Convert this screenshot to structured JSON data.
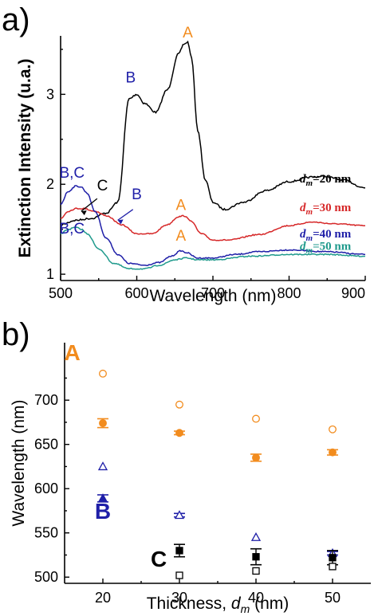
{
  "colors": {
    "black": "#000000",
    "red": "#d62728",
    "blue": "#1f1fa8",
    "teal": "#1f9a8c",
    "orange": "#f28c1e"
  },
  "panel_a": {
    "label": "a)"
  },
  "panel_b": {
    "label": "b)"
  },
  "chart_data": [
    {
      "type": "line",
      "xlabel": "Wavelength (nm)",
      "ylabel": "Extinction Intensity (u.a.)",
      "xlim": [
        500,
        900
      ],
      "ylim": [
        0.93,
        3.65
      ],
      "xticks": [
        500,
        600,
        700,
        800,
        900
      ],
      "yticks": [
        1,
        2,
        3
      ],
      "series": [
        {
          "name": "d_m=20 nm",
          "color": "#000000",
          "x": [
            500,
            520,
            540,
            560,
            575,
            590,
            600,
            610,
            625,
            640,
            655,
            662,
            667,
            672,
            680,
            690,
            700,
            715,
            740,
            770,
            800,
            830,
            845,
            870,
            900
          ],
          "y": [
            1.55,
            1.6,
            1.62,
            1.68,
            1.8,
            2.95,
            3.0,
            2.9,
            2.8,
            3.05,
            3.45,
            3.56,
            3.58,
            3.4,
            2.6,
            2.05,
            1.8,
            1.72,
            1.8,
            1.93,
            2.03,
            2.08,
            2.09,
            2.05,
            1.96
          ]
        },
        {
          "name": "d_m=30 nm",
          "color": "#d62728",
          "x": [
            500,
            510,
            520,
            530,
            545,
            560,
            580,
            600,
            620,
            640,
            655,
            662,
            670,
            685,
            700,
            720,
            760,
            800,
            830,
            860,
            900
          ],
          "y": [
            1.62,
            1.7,
            1.73,
            1.73,
            1.7,
            1.65,
            1.55,
            1.45,
            1.45,
            1.55,
            1.64,
            1.65,
            1.6,
            1.45,
            1.38,
            1.38,
            1.44,
            1.54,
            1.58,
            1.56,
            1.54
          ]
        },
        {
          "name": "d_m=40 nm",
          "color": "#1f1fa8",
          "x": [
            500,
            510,
            520,
            527,
            535,
            545,
            560,
            575,
            590,
            610,
            630,
            645,
            658,
            665,
            680,
            700,
            730,
            760,
            800,
            850,
            900
          ],
          "y": [
            1.78,
            1.92,
            1.98,
            1.97,
            1.9,
            1.7,
            1.4,
            1.22,
            1.12,
            1.1,
            1.13,
            1.2,
            1.26,
            1.24,
            1.18,
            1.18,
            1.22,
            1.25,
            1.27,
            1.25,
            1.22
          ]
        },
        {
          "name": "d_m=50 nm",
          "color": "#1f9a8c",
          "x": [
            500,
            510,
            520,
            527,
            535,
            550,
            570,
            590,
            610,
            630,
            650,
            665,
            680,
            700,
            750,
            800,
            850,
            900
          ],
          "y": [
            1.45,
            1.5,
            1.52,
            1.5,
            1.45,
            1.28,
            1.12,
            1.06,
            1.06,
            1.1,
            1.16,
            1.18,
            1.16,
            1.16,
            1.2,
            1.22,
            1.22,
            1.2
          ]
        }
      ],
      "annotations": [
        {
          "text": "A",
          "color": "#f28c1e",
          "x": 667,
          "y": 3.58
        },
        {
          "text": "B",
          "color": "#1f1fa8",
          "x": 592,
          "y": 3.08
        },
        {
          "text": "B,C",
          "color": "#1f1fa8",
          "x": 515,
          "y": 2.02
        },
        {
          "text": "C",
          "color": "#000000",
          "x": 555,
          "y": 1.88
        },
        {
          "text": "B",
          "color": "#1f1fa8",
          "x": 600,
          "y": 1.78
        },
        {
          "text": "A",
          "color": "#f28c1e",
          "x": 658,
          "y": 1.66
        },
        {
          "text": "B,C",
          "color": "#1f1fa8",
          "x": 515,
          "y": 1.4
        },
        {
          "text": "A",
          "color": "#f28c1e",
          "x": 658,
          "y": 1.32
        }
      ],
      "legend_labels": [
        {
          "prefix": "d",
          "sub": "m",
          "suffix": "=20 nm",
          "color": "#000000"
        },
        {
          "prefix": "d",
          "sub": "m",
          "suffix": "=30 nm",
          "color": "#d62728"
        },
        {
          "prefix": "d",
          "sub": "m",
          "suffix": "=40 nm",
          "color": "#1f1fa8"
        },
        {
          "prefix": "d",
          "sub": "m",
          "suffix": "=50 nm",
          "color": "#1f9a8c"
        }
      ]
    },
    {
      "type": "scatter",
      "xlabel": "Thickness, d_m (nm)",
      "ylabel": "Wavelength (nm)",
      "xlim": [
        15,
        55
      ],
      "ylim": [
        493,
        765
      ],
      "xticks": [
        20,
        30,
        40,
        50
      ],
      "yticks": [
        500,
        550,
        600,
        650,
        700
      ],
      "series": [
        {
          "name": "A filled",
          "color": "#f28c1e",
          "marker": "circle-filled",
          "x": [
            20,
            30,
            40,
            50
          ],
          "y": [
            674,
            663,
            635,
            641
          ],
          "err": [
            5,
            2,
            4,
            3
          ]
        },
        {
          "name": "A open",
          "color": "#f28c1e",
          "marker": "circle-open",
          "x": [
            20,
            30,
            40,
            50
          ],
          "y": [
            730,
            695,
            679,
            667
          ]
        },
        {
          "name": "B filled",
          "color": "#1f1fa8",
          "marker": "triangle-filled",
          "x": [
            20
          ],
          "y": [
            589
          ],
          "err": [
            4
          ]
        },
        {
          "name": "B open",
          "color": "#1f1fa8",
          "marker": "triangle-open",
          "x": [
            20,
            30,
            40,
            50
          ],
          "y": [
            625,
            570,
            545,
            527
          ],
          "err": [
            0,
            2,
            0,
            2
          ]
        },
        {
          "name": "C filled",
          "color": "#000000",
          "marker": "square-filled",
          "x": [
            30,
            40,
            50
          ],
          "y": [
            530,
            523,
            522
          ],
          "err": [
            7,
            9,
            8
          ]
        },
        {
          "name": "C open",
          "color": "#000000",
          "marker": "square-open",
          "x": [
            30,
            40,
            50
          ],
          "y": [
            502,
            507,
            512
          ]
        }
      ],
      "annotations": [
        {
          "text": "A",
          "color": "#f28c1e",
          "x": 16,
          "y": 745
        },
        {
          "text": "B",
          "color": "#1f1fa8",
          "x": 20,
          "y": 566
        },
        {
          "text": "C",
          "color": "#000000",
          "x": 27.3,
          "y": 512
        }
      ]
    }
  ]
}
